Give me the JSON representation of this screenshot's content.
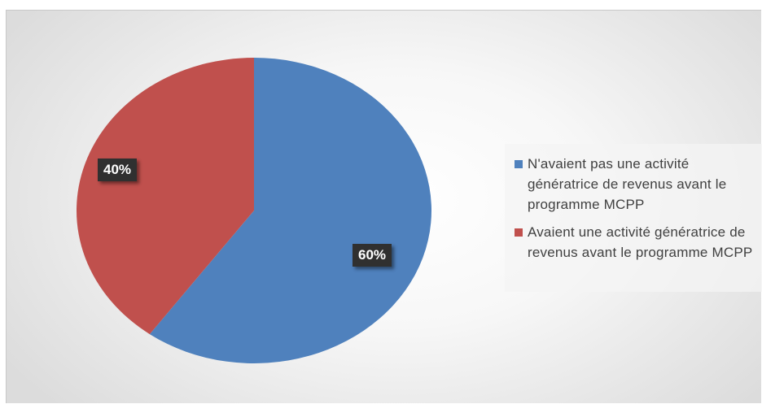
{
  "chart_data": {
    "type": "pie",
    "slices": [
      {
        "label": "N'avaient pas une activité génératrice de revenus avant le programme MCPP",
        "value": 60,
        "display": "60%",
        "color": "#4f81bd"
      },
      {
        "label": "Avaient une activité génératrice de revenus avant le programme MCPP",
        "value": 40,
        "display": "40%",
        "color": "#c0504d"
      }
    ],
    "legend_position": "right"
  }
}
